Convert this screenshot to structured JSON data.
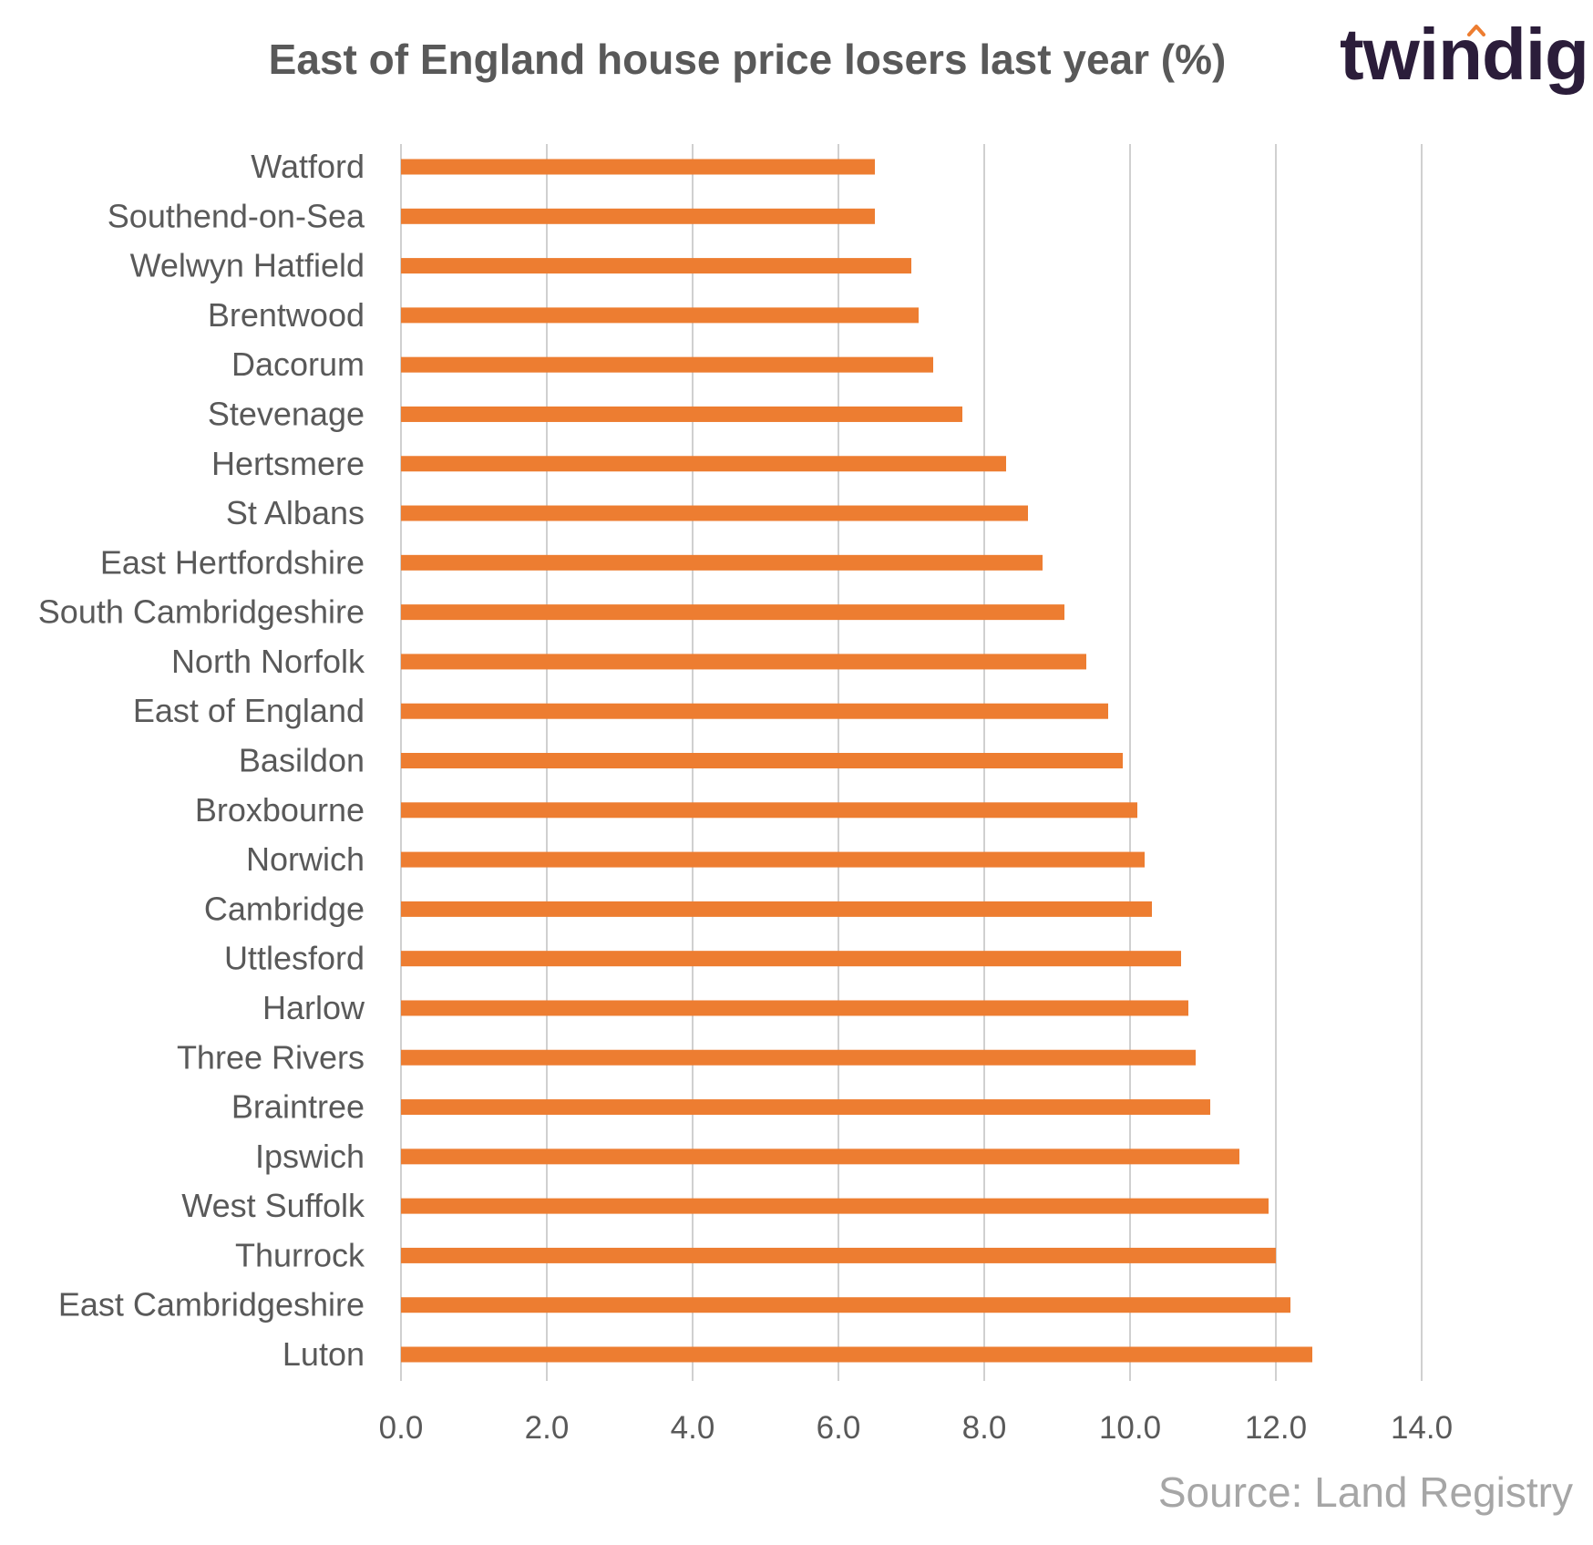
{
  "header": {
    "title": "East of England house price losers last year (%)",
    "logo_text": "twindig"
  },
  "footer": {
    "source": "Source: Land Registry"
  },
  "colors": {
    "bar": "#ED7D31",
    "grid": "#d0d0d0",
    "text": "#595959",
    "logo": "#2b1d3a",
    "logo_accent": "#ED7D31",
    "source": "#a6a6a6"
  },
  "chart_data": {
    "type": "bar",
    "orientation": "horizontal",
    "title": "East of England house price losers last year (%)",
    "xlabel": "",
    "ylabel": "",
    "xlim": [
      0,
      14
    ],
    "x_ticks": [
      "0.0",
      "2.0",
      "4.0",
      "6.0",
      "8.0",
      "10.0",
      "12.0",
      "14.0"
    ],
    "grid": "vertical",
    "legend": "none",
    "categories": [
      "Watford",
      "Southend-on-Sea",
      "Welwyn Hatfield",
      "Brentwood",
      "Dacorum",
      "Stevenage",
      "Hertsmere",
      "St Albans",
      "East Hertfordshire",
      "South Cambridgeshire",
      "North Norfolk",
      "East of England",
      "Basildon",
      "Broxbourne",
      "Norwich",
      "Cambridge",
      "Uttlesford",
      "Harlow",
      "Three Rivers",
      "Braintree",
      "Ipswich",
      "West Suffolk",
      "Thurrock",
      "East Cambridgeshire",
      "Luton"
    ],
    "values": [
      6.5,
      6.5,
      7.0,
      7.1,
      7.3,
      7.7,
      8.3,
      8.6,
      8.8,
      9.1,
      9.4,
      9.7,
      9.9,
      10.1,
      10.2,
      10.3,
      10.7,
      10.8,
      10.9,
      11.1,
      11.5,
      11.9,
      12.0,
      12.2,
      12.5
    ]
  }
}
